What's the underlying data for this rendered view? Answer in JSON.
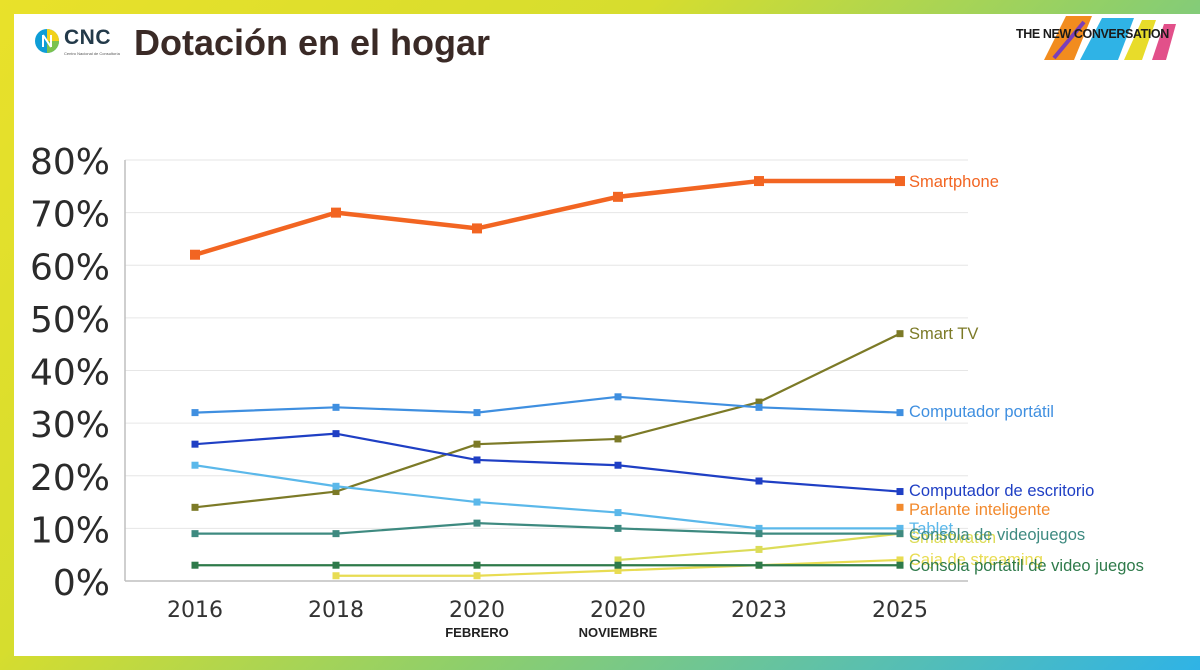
{
  "header": {
    "logo_name": "CNC",
    "logo_subtitle": "Centro Nacional de Consultoría",
    "title": "Dotación en el hogar",
    "brand": "THE NEW CONVERSATION"
  },
  "chart_data": {
    "type": "line",
    "title": "Dotación en el hogar",
    "xlabel": "",
    "ylabel": "",
    "ylim": [
      0,
      80
    ],
    "grid": true,
    "categories": [
      "2016",
      "2018",
      "2020",
      "2020",
      "2023",
      "2025"
    ],
    "category_sublabels": [
      "",
      "",
      "FEBRERO",
      "NOVIEMBRE",
      "",
      ""
    ],
    "y_ticks": [
      "0%",
      "10%",
      "20%",
      "30%",
      "40%",
      "50%",
      "60%",
      "70%",
      "80%"
    ],
    "series": [
      {
        "name": "Smartphone",
        "color": "#f26522",
        "values": [
          62,
          70,
          67,
          73,
          76,
          76
        ]
      },
      {
        "name": "Smart TV",
        "color": "#7c7a27",
        "values": [
          14,
          17,
          26,
          27,
          34,
          47
        ]
      },
      {
        "name": "Computador portátil",
        "color": "#3f8fe0",
        "values": [
          32,
          33,
          32,
          35,
          33,
          32
        ]
      },
      {
        "name": "Computador de escritorio",
        "color": "#1f3fc4",
        "values": [
          26,
          28,
          23,
          22,
          19,
          17
        ]
      },
      {
        "name": "Parlante inteligente",
        "color": "#f28a2e",
        "values": [
          null,
          null,
          null,
          null,
          null,
          14
        ]
      },
      {
        "name": "Tablet",
        "color": "#5bb8ea",
        "values": [
          22,
          18,
          15,
          13,
          10,
          10
        ]
      },
      {
        "name": "Smartwatch",
        "color": "#dcdc58",
        "values": [
          null,
          null,
          null,
          4,
          6,
          9
        ]
      },
      {
        "name": "Consola de videojuegos",
        "color": "#3e8a80",
        "values": [
          9,
          9,
          11,
          10,
          9,
          9
        ]
      },
      {
        "name": "Caja de streaming",
        "color": "#e8dc52",
        "values": [
          null,
          1,
          1,
          2,
          3,
          4
        ]
      },
      {
        "name": "Consola portátil de video juegos",
        "color": "#2e7a4a",
        "values": [
          3,
          3,
          3,
          3,
          3,
          3
        ]
      }
    ]
  }
}
